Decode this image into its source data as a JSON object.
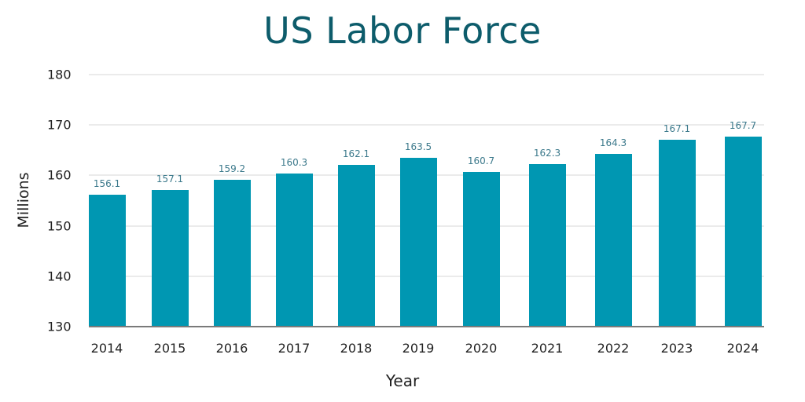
{
  "chart_data": {
    "type": "bar",
    "title": "US Labor Force",
    "xlabel": "Year",
    "ylabel": "Millions",
    "categories": [
      "2014",
      "2015",
      "2016",
      "2017",
      "2018",
      "2019",
      "2020",
      "2021",
      "2022",
      "2023",
      "2024"
    ],
    "values": [
      156.1,
      157.1,
      159.2,
      160.3,
      162.1,
      163.5,
      160.7,
      162.3,
      164.3,
      167.1,
      167.7
    ],
    "value_labels": [
      "156.1",
      "157.1",
      "159.2",
      "160.3",
      "162.1",
      "163.5",
      "160.7",
      "162.3",
      "164.3",
      "167.1",
      "167.7"
    ],
    "ylim": [
      130,
      180
    ],
    "yticks": [
      "130",
      "140",
      "150",
      "160",
      "170",
      "180"
    ],
    "grid": true,
    "legend": "none",
    "bar_color": "#0097b2",
    "title_color": "#0d5c6b",
    "label_color": "#3d7a8c"
  }
}
